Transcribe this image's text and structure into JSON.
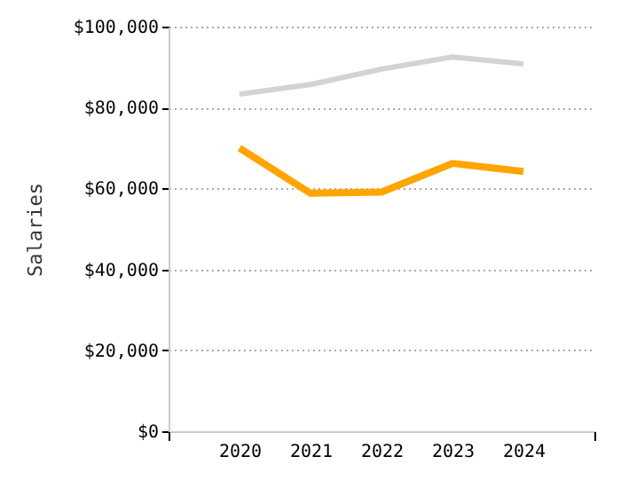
{
  "chart_data": {
    "type": "line",
    "ylabel": "Salaries",
    "x": [
      2020,
      2021,
      2022,
      2023,
      2024
    ],
    "xlim": [
      2019,
      2025
    ],
    "xticks": [
      {
        "value": 2019,
        "label": null
      },
      2020,
      2021,
      2022,
      2023,
      2024,
      {
        "value": 2025,
        "label": null
      }
    ],
    "ylim": [
      0,
      100000
    ],
    "yticks": [
      {
        "value": 0,
        "label": "$0"
      },
      {
        "value": 20000,
        "label": "$20,000"
      },
      {
        "value": 40000,
        "label": "$40,000"
      },
      {
        "value": 60000,
        "label": "$60,000"
      },
      {
        "value": 80000,
        "label": "$80,000"
      },
      {
        "value": 100000,
        "label": "$100,000"
      }
    ],
    "series": [
      {
        "color": "#d3d3d3",
        "values": [
          83300,
          85700,
          89500,
          92500,
          90800
        ]
      },
      {
        "color": "#ffa500",
        "values": [
          70000,
          58800,
          59100,
          66200,
          64200
        ]
      }
    ],
    "grid": "y",
    "legend": false,
    "marker": "none",
    "line_style": "solid"
  }
}
